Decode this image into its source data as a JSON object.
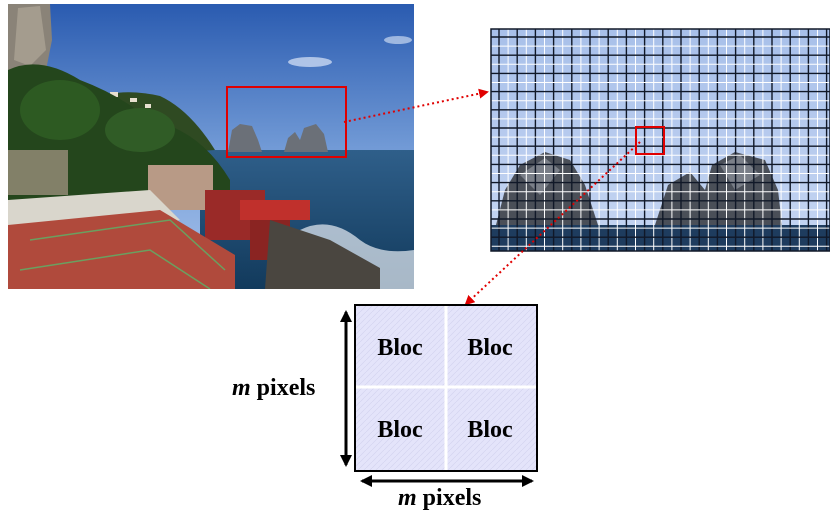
{
  "photo": {
    "description_icon": "coastal-landscape-photo"
  },
  "block": {
    "cells": [
      "Bloc",
      "Bloc",
      "Bloc",
      "Bloc"
    ]
  },
  "dimension_labels": {
    "vertical_var": "m",
    "vertical_unit": " pixels",
    "horizontal_var": "m",
    "horizontal_unit": " pixels"
  },
  "colors": {
    "highlight": "#e00000",
    "arrow": "#e00000",
    "grid_dark": "#101828",
    "grid_light": "#ffffff",
    "block_fill": "#e4e4fa"
  }
}
